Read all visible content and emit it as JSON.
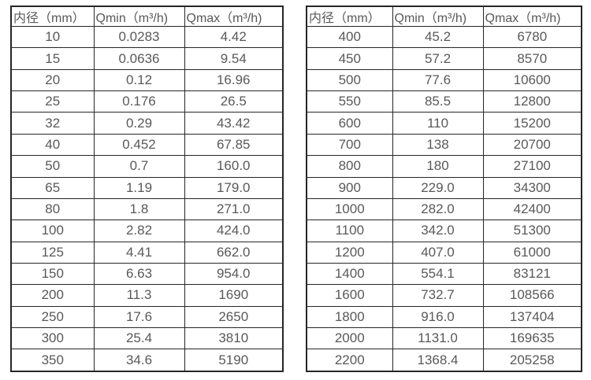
{
  "page": {
    "background": "#ffffff",
    "border_color": "#262626",
    "text_color": "#595959"
  },
  "tables": [
    {
      "name": "flow-range-table-small-diameters",
      "headers": [
        "内径（mm）",
        "Qmin（m³/h)",
        "Qmax（m³/h)"
      ],
      "rows": [
        [
          "10",
          "0.0283",
          "4.42"
        ],
        [
          "15",
          "0.0636",
          "9.54"
        ],
        [
          "20",
          "0.12",
          "16.96"
        ],
        [
          "25",
          "0.176",
          "26.5"
        ],
        [
          "32",
          "0.29",
          "43.42"
        ],
        [
          "40",
          "0.452",
          "67.85"
        ],
        [
          "50",
          "0.7",
          "160.0"
        ],
        [
          "65",
          "1.19",
          "179.0"
        ],
        [
          "80",
          "1.8",
          "271.0"
        ],
        [
          "100",
          "2.82",
          "424.0"
        ],
        [
          "125",
          "4.41",
          "662.0"
        ],
        [
          "150",
          "6.63",
          "954.0"
        ],
        [
          "200",
          "11.3",
          "1690"
        ],
        [
          "250",
          "17.6",
          "2650"
        ],
        [
          "300",
          "25.4",
          "3810"
        ],
        [
          "350",
          "34.6",
          "5190"
        ]
      ]
    },
    {
      "name": "flow-range-table-large-diameters",
      "headers": [
        "内径（mm）",
        "Qmin（m³/h)",
        "Qmax（m³/h)"
      ],
      "rows": [
        [
          "400",
          "45.2",
          "6780"
        ],
        [
          "450",
          "57.2",
          "8570"
        ],
        [
          "500",
          "77.6",
          "10600"
        ],
        [
          "550",
          "85.5",
          "12800"
        ],
        [
          "600",
          "110",
          "15200"
        ],
        [
          "700",
          "138",
          "20700"
        ],
        [
          "800",
          "180",
          "27100"
        ],
        [
          "900",
          "229.0",
          "34300"
        ],
        [
          "1000",
          "282.0",
          "42400"
        ],
        [
          "1100",
          "342.0",
          "51300"
        ],
        [
          "1200",
          "407.0",
          "61000"
        ],
        [
          "1400",
          "554.1",
          "83121"
        ],
        [
          "1600",
          "732.7",
          "108566"
        ],
        [
          "1800",
          "916.0",
          "137404"
        ],
        [
          "2000",
          "1131.0",
          "169635"
        ],
        [
          "2200",
          "1368.4",
          "205258"
        ]
      ]
    }
  ]
}
